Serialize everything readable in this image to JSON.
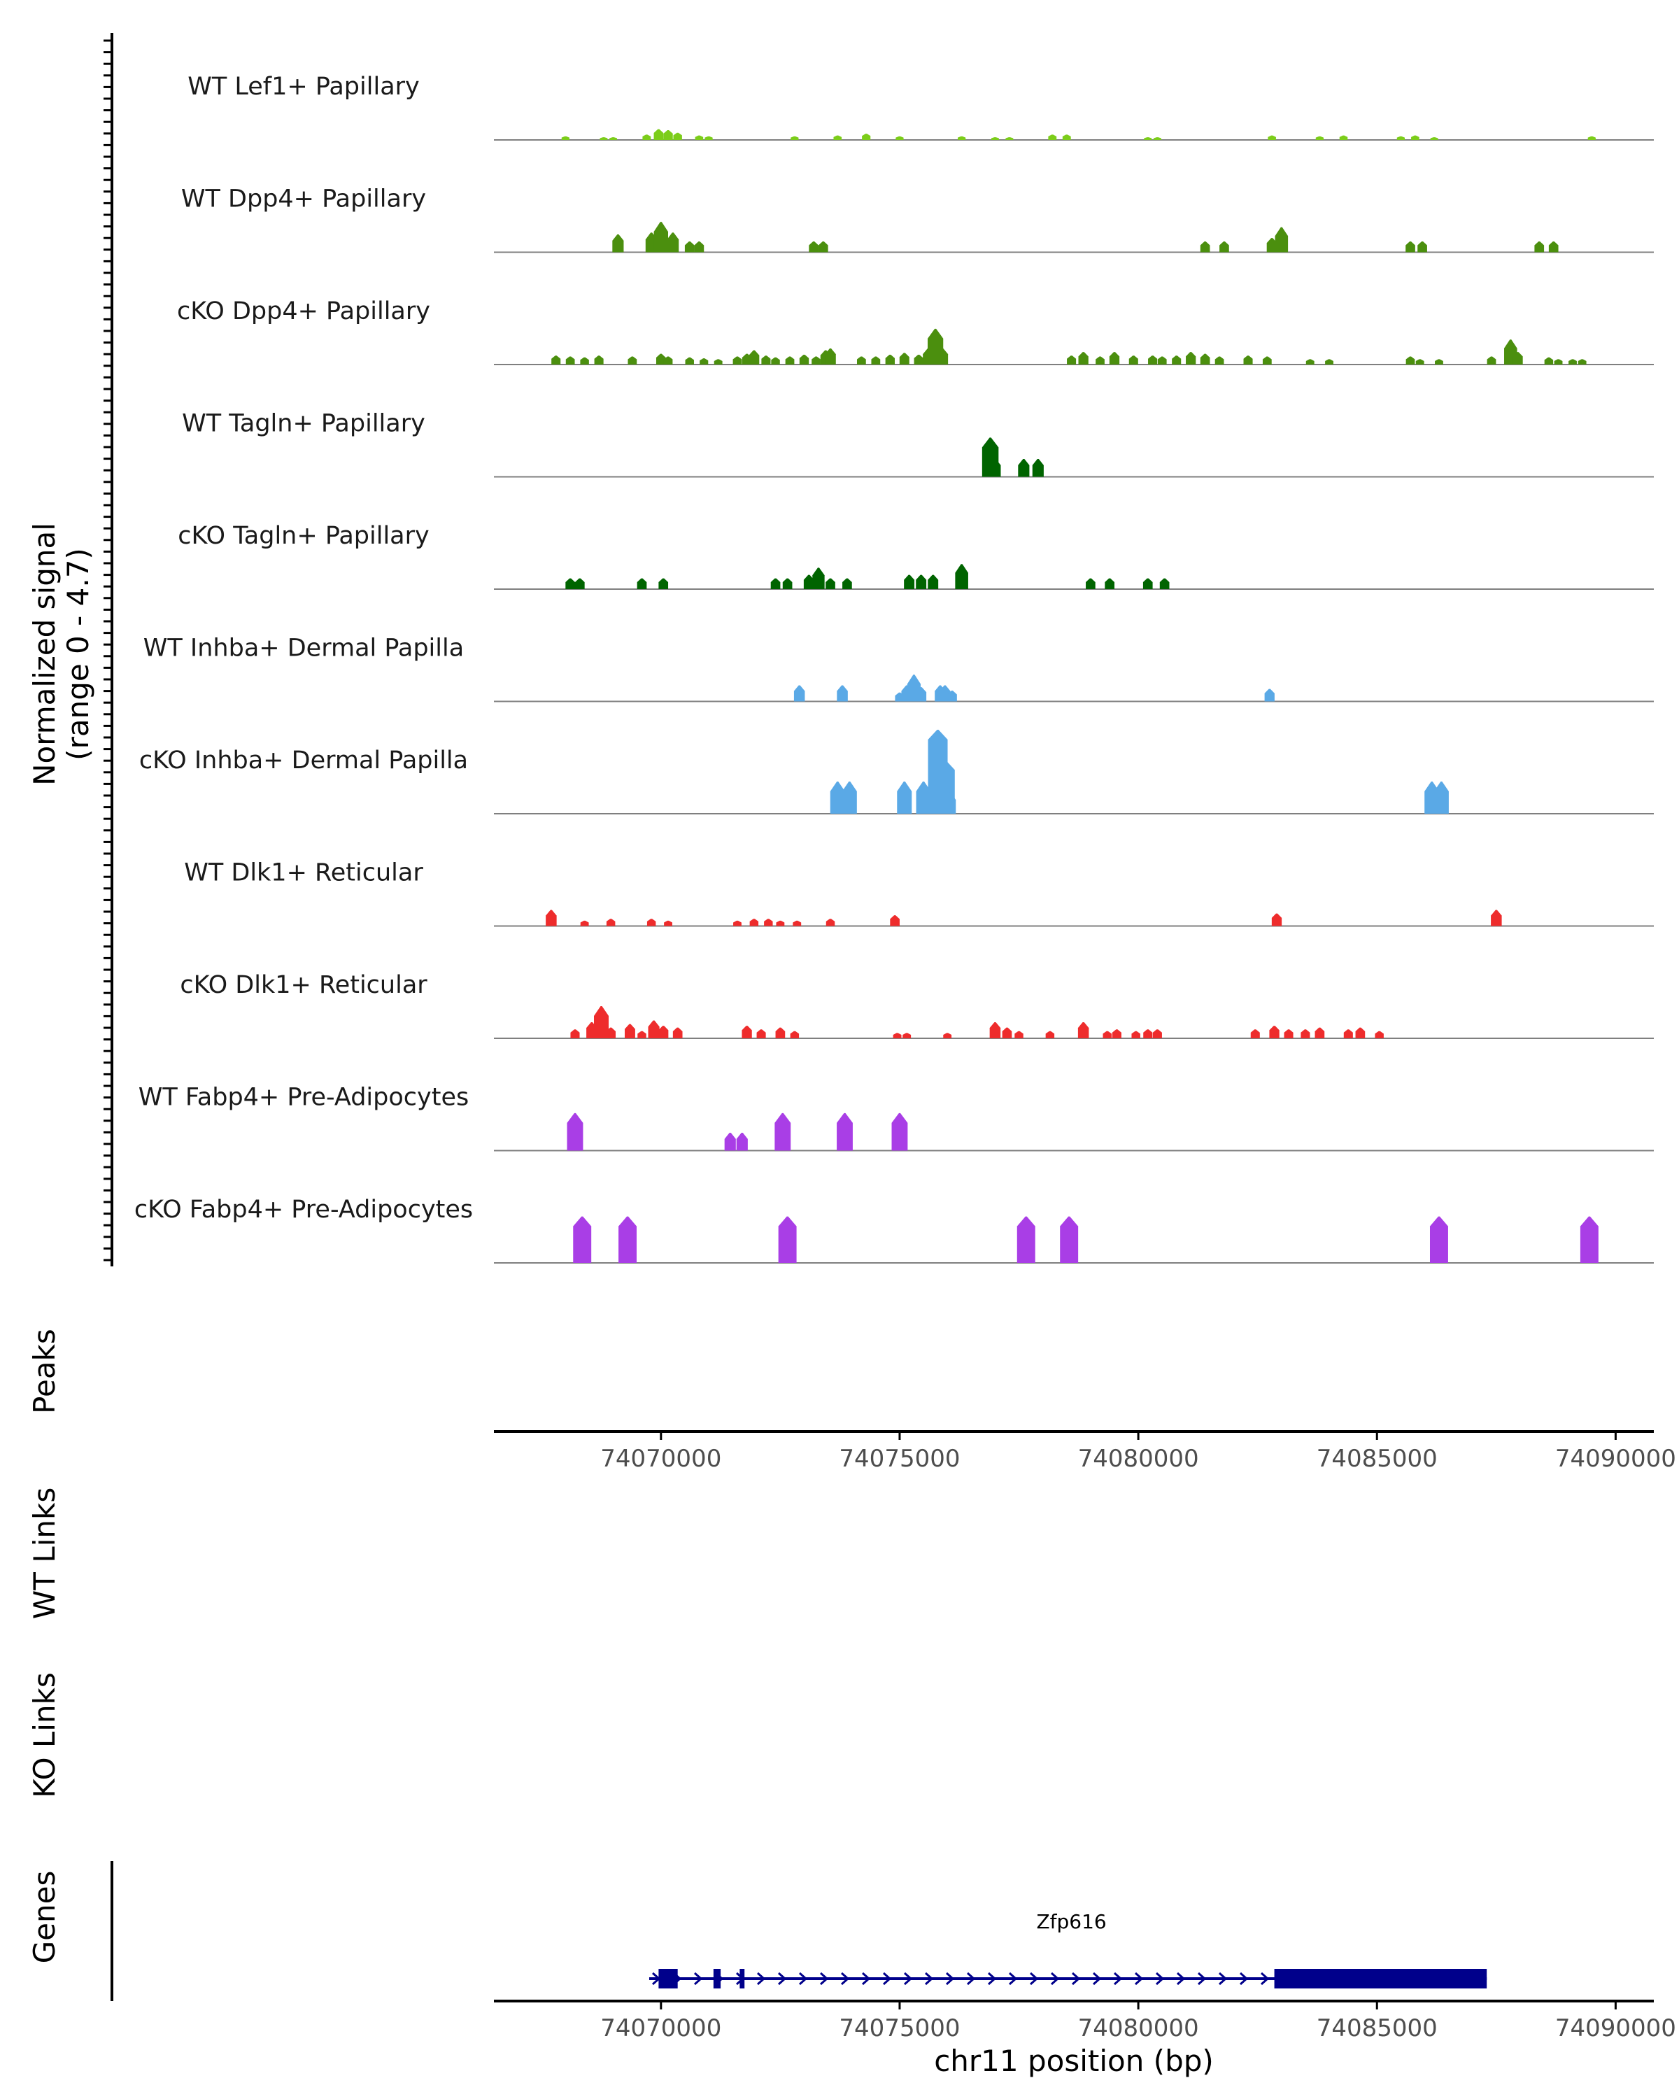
{
  "chart_data": {
    "type": "area",
    "title": "",
    "ylabel_track": [
      "Normalized signal",
      "(range 0 - 4.7)"
    ],
    "ylim": [
      0,
      4.7
    ],
    "xlim": [
      74066500,
      74090800
    ],
    "xlabel": "chr11 position (bp)",
    "xticks": [
      74070000,
      74075000,
      74080000,
      74085000,
      74090000
    ],
    "xtick_labels": [
      "74070000",
      "74075000",
      "74080000",
      "74085000",
      "74090000"
    ],
    "panel_labels": {
      "peaks": "Peaks",
      "wt_links": "WT Links",
      "ko_links": "KO Links",
      "genes": "Genes"
    },
    "series": [
      {
        "name": "WT Lef1+ Papillary",
        "color": "#7ccd1a",
        "peaks": [
          [
            74068000,
            0.2
          ],
          [
            74068800,
            0.15
          ],
          [
            74069000,
            0.15
          ],
          [
            74069700,
            0.3
          ],
          [
            74069950,
            0.6
          ],
          [
            74070150,
            0.55
          ],
          [
            74070350,
            0.4
          ],
          [
            74070800,
            0.25
          ],
          [
            74071000,
            0.2
          ],
          [
            74072800,
            0.2
          ],
          [
            74073700,
            0.25
          ],
          [
            74074300,
            0.35
          ],
          [
            74075000,
            0.2
          ],
          [
            74076300,
            0.2
          ],
          [
            74077000,
            0.15
          ],
          [
            74077300,
            0.15
          ],
          [
            74078200,
            0.3
          ],
          [
            74078500,
            0.3
          ],
          [
            74080200,
            0.15
          ],
          [
            74080400,
            0.15
          ],
          [
            74082800,
            0.25
          ],
          [
            74083800,
            0.2
          ],
          [
            74084300,
            0.25
          ],
          [
            74085500,
            0.2
          ],
          [
            74085800,
            0.25
          ],
          [
            74086200,
            0.15
          ],
          [
            74089500,
            0.2
          ]
        ]
      },
      {
        "name": "WT Dpp4+ Papillary",
        "color": "#4b8f0e",
        "peaks": [
          [
            74069100,
            1.0
          ],
          [
            74069800,
            1.1
          ],
          [
            74070000,
            1.7
          ],
          [
            74070250,
            1.1
          ],
          [
            74070600,
            0.6
          ],
          [
            74070800,
            0.6
          ],
          [
            74073200,
            0.6
          ],
          [
            74073400,
            0.6
          ],
          [
            74081400,
            0.6
          ],
          [
            74081800,
            0.6
          ],
          [
            74082800,
            0.8
          ],
          [
            74083000,
            1.4
          ],
          [
            74085700,
            0.6
          ],
          [
            74085950,
            0.6
          ],
          [
            74088400,
            0.6
          ],
          [
            74088700,
            0.6
          ]
        ]
      },
      {
        "name": "cKO Dpp4+ Papillary",
        "color": "#4b8f0e",
        "peaks": [
          [
            74067800,
            0.5
          ],
          [
            74068100,
            0.45
          ],
          [
            74068400,
            0.4
          ],
          [
            74068700,
            0.5
          ],
          [
            74069400,
            0.45
          ],
          [
            74070000,
            0.6
          ],
          [
            74070150,
            0.45
          ],
          [
            74070600,
            0.4
          ],
          [
            74070900,
            0.35
          ],
          [
            74071200,
            0.3
          ],
          [
            74071600,
            0.45
          ],
          [
            74071800,
            0.6
          ],
          [
            74071950,
            0.8
          ],
          [
            74072200,
            0.5
          ],
          [
            74072400,
            0.4
          ],
          [
            74072700,
            0.45
          ],
          [
            74073000,
            0.55
          ],
          [
            74073250,
            0.45
          ],
          [
            74073450,
            0.8
          ],
          [
            74073550,
            0.9
          ],
          [
            74074200,
            0.45
          ],
          [
            74074500,
            0.45
          ],
          [
            74074800,
            0.55
          ],
          [
            74075100,
            0.65
          ],
          [
            74075400,
            0.55
          ],
          [
            74075600,
            0.9
          ],
          [
            74075750,
            2.0
          ],
          [
            74075900,
            0.9
          ],
          [
            74078600,
            0.5
          ],
          [
            74078850,
            0.7
          ],
          [
            74079200,
            0.45
          ],
          [
            74079500,
            0.7
          ],
          [
            74079900,
            0.5
          ],
          [
            74080300,
            0.5
          ],
          [
            74080500,
            0.45
          ],
          [
            74080800,
            0.5
          ],
          [
            74081100,
            0.7
          ],
          [
            74081400,
            0.6
          ],
          [
            74081700,
            0.45
          ],
          [
            74082300,
            0.5
          ],
          [
            74082700,
            0.45
          ],
          [
            74083600,
            0.3
          ],
          [
            74084000,
            0.3
          ],
          [
            74085700,
            0.45
          ],
          [
            74085900,
            0.3
          ],
          [
            74086300,
            0.3
          ],
          [
            74087400,
            0.45
          ],
          [
            74087800,
            1.4
          ],
          [
            74087950,
            0.7
          ],
          [
            74088600,
            0.4
          ],
          [
            74088800,
            0.3
          ],
          [
            74089100,
            0.3
          ],
          [
            74089300,
            0.3
          ]
        ]
      },
      {
        "name": "WT Tagln+ Papillary",
        "color": "#006400",
        "peaks": [
          [
            74076900,
            2.2
          ],
          [
            74077000,
            1.0
          ],
          [
            74077600,
            1.0
          ],
          [
            74077900,
            1.0
          ]
        ]
      },
      {
        "name": "cKO Tagln+ Papillary",
        "color": "#006400",
        "peaks": [
          [
            74068100,
            0.6
          ],
          [
            74068300,
            0.6
          ],
          [
            74069600,
            0.6
          ],
          [
            74070050,
            0.6
          ],
          [
            74072400,
            0.6
          ],
          [
            74072650,
            0.6
          ],
          [
            74073100,
            0.8
          ],
          [
            74073300,
            1.2
          ],
          [
            74073550,
            0.6
          ],
          [
            74073900,
            0.6
          ],
          [
            74075200,
            0.8
          ],
          [
            74075450,
            0.8
          ],
          [
            74075700,
            0.8
          ],
          [
            74076300,
            1.4
          ],
          [
            74079000,
            0.6
          ],
          [
            74079400,
            0.6
          ],
          [
            74080200,
            0.6
          ],
          [
            74080550,
            0.6
          ]
        ]
      },
      {
        "name": "WT Inhba+ Dermal Papilla",
        "color": "#5aa9e6",
        "peaks": [
          [
            74072900,
            0.9
          ],
          [
            74073800,
            0.9
          ],
          [
            74075000,
            0.5
          ],
          [
            74075150,
            0.9
          ],
          [
            74075300,
            1.5
          ],
          [
            74075450,
            0.8
          ],
          [
            74075850,
            0.9
          ],
          [
            74075950,
            0.9
          ],
          [
            74076100,
            0.6
          ],
          [
            74082750,
            0.7
          ]
        ]
      },
      {
        "name": "cKO Inhba+ Dermal Papilla",
        "color": "#5aa9e6",
        "peaks": [
          [
            74073700,
            1.8
          ],
          [
            74073950,
            1.8
          ],
          [
            74075100,
            1.8
          ],
          [
            74075500,
            1.8
          ],
          [
            74075800,
            4.7
          ],
          [
            74075950,
            3.0
          ],
          [
            74076050,
            1.2
          ],
          [
            74086150,
            1.8
          ],
          [
            74086350,
            1.8
          ]
        ]
      },
      {
        "name": "WT Dlk1+ Reticular",
        "color": "#ee2c2c",
        "peaks": [
          [
            74067700,
            0.9
          ],
          [
            74068400,
            0.3
          ],
          [
            74068950,
            0.4
          ],
          [
            74069800,
            0.4
          ],
          [
            74070150,
            0.3
          ],
          [
            74071600,
            0.3
          ],
          [
            74071950,
            0.4
          ],
          [
            74072250,
            0.4
          ],
          [
            74072500,
            0.3
          ],
          [
            74072850,
            0.3
          ],
          [
            74073550,
            0.4
          ],
          [
            74074900,
            0.6
          ],
          [
            74082900,
            0.7
          ],
          [
            74087500,
            0.9
          ]
        ]
      },
      {
        "name": "cKO Dlk1+ Reticular",
        "color": "#ee2c2c",
        "peaks": [
          [
            74068200,
            0.5
          ],
          [
            74068550,
            0.9
          ],
          [
            74068750,
            1.8
          ],
          [
            74068950,
            0.6
          ],
          [
            74069350,
            0.8
          ],
          [
            74069600,
            0.4
          ],
          [
            74069850,
            1.0
          ],
          [
            74070050,
            0.7
          ],
          [
            74070350,
            0.6
          ],
          [
            74071800,
            0.7
          ],
          [
            74072100,
            0.5
          ],
          [
            74072500,
            0.6
          ],
          [
            74072800,
            0.4
          ],
          [
            74074950,
            0.3
          ],
          [
            74075150,
            0.3
          ],
          [
            74076000,
            0.3
          ],
          [
            74077000,
            0.9
          ],
          [
            74077250,
            0.6
          ],
          [
            74077500,
            0.4
          ],
          [
            74078150,
            0.4
          ],
          [
            74078850,
            0.9
          ],
          [
            74079350,
            0.4
          ],
          [
            74079550,
            0.5
          ],
          [
            74079950,
            0.4
          ],
          [
            74080200,
            0.5
          ],
          [
            74080400,
            0.5
          ],
          [
            74082450,
            0.5
          ],
          [
            74082850,
            0.7
          ],
          [
            74083150,
            0.5
          ],
          [
            74083500,
            0.5
          ],
          [
            74083800,
            0.6
          ],
          [
            74084400,
            0.5
          ],
          [
            74084650,
            0.6
          ],
          [
            74085050,
            0.4
          ]
        ]
      },
      {
        "name": "WT Fabp4+ Pre-Adipocytes",
        "color": "#a93ee6",
        "peaks": [
          [
            74068200,
            2.1
          ],
          [
            74071450,
            1.0
          ],
          [
            74071700,
            1.0
          ],
          [
            74072550,
            2.1
          ],
          [
            74073850,
            2.1
          ],
          [
            74075000,
            2.1
          ]
        ]
      },
      {
        "name": "cKO Fabp4+ Pre-Adipocytes",
        "color": "#a93ee6",
        "peaks": [
          [
            74068350,
            2.6
          ],
          [
            74069300,
            2.6
          ],
          [
            74072650,
            2.6
          ],
          [
            74077650,
            2.6
          ],
          [
            74078550,
            2.6
          ],
          [
            74086300,
            2.6
          ],
          [
            74089450,
            2.6
          ]
        ]
      }
    ],
    "gene": {
      "name": "Zfp616",
      "color": "#00008b",
      "strand": "+",
      "start": 74069900,
      "end": 74087300,
      "exons": [
        [
          74069950,
          74070350
        ],
        [
          74071100,
          74071250
        ],
        [
          74071650,
          74071750
        ]
      ],
      "thick": [
        [
          74082850,
          74087300
        ]
      ]
    }
  }
}
